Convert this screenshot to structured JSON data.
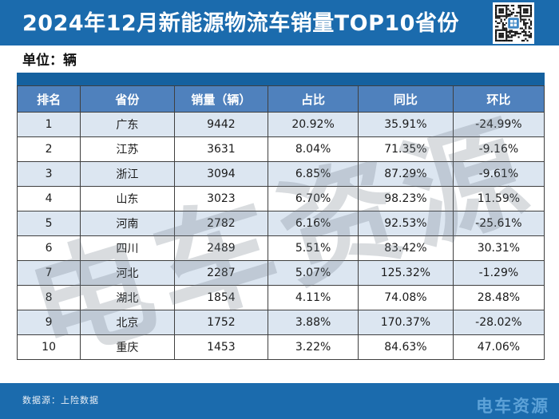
{
  "header": {
    "title": "2024年12月新能源物流车销量TOP10省份"
  },
  "icons": {
    "qr_code": "qr-code-icon"
  },
  "unit_label": "单位：辆",
  "table": {
    "columns": [
      "排名",
      "省份",
      "销量（辆）",
      "占比",
      "同比",
      "环比"
    ],
    "rows": [
      [
        "1",
        "广东",
        "9442",
        "20.92%",
        "35.91%",
        "-24.99%"
      ],
      [
        "2",
        "江苏",
        "3631",
        "8.04%",
        "71.35%",
        "-9.16%"
      ],
      [
        "3",
        "浙江",
        "3094",
        "6.85%",
        "87.29%",
        "-9.61%"
      ],
      [
        "4",
        "山东",
        "3023",
        "6.70%",
        "98.23%",
        "11.59%"
      ],
      [
        "5",
        "河南",
        "2782",
        "6.16%",
        "92.53%",
        "-25.61%"
      ],
      [
        "6",
        "四川",
        "2489",
        "5.51%",
        "83.42%",
        "30.31%"
      ],
      [
        "7",
        "河北",
        "2287",
        "5.07%",
        "125.32%",
        "-1.29%"
      ],
      [
        "8",
        "湖北",
        "1854",
        "4.11%",
        "74.08%",
        "28.48%"
      ],
      [
        "9",
        "北京",
        "1752",
        "3.88%",
        "170.37%",
        "-28.02%"
      ],
      [
        "10",
        "重庆",
        "1453",
        "3.22%",
        "84.63%",
        "47.06%"
      ]
    ]
  },
  "watermark_text": "电车资源",
  "footer": {
    "source": "数据源：上险数据",
    "brand": "电车资源"
  },
  "colors": {
    "banner_blue": "#1b6bad",
    "strip_blue": "#15619f",
    "header_row_blue": "#4f81bd",
    "row_alt_blue": "#dce6f1",
    "row_white": "#ffffff",
    "border_gray": "#3f3f3f",
    "brand_logo_blue": "#5da2d8",
    "watermark_gray": "#c9ced4"
  },
  "chart_data": {
    "type": "table",
    "title": "2024年12月新能源物流车销量TOP10省份",
    "unit": "辆",
    "columns": [
      "排名",
      "省份",
      "销量（辆）",
      "占比",
      "同比",
      "环比"
    ],
    "rows": [
      [
        "1",
        "广东",
        "9442",
        "20.92%",
        "35.91%",
        "-24.99%"
      ],
      [
        "2",
        "江苏",
        "3631",
        "8.04%",
        "71.35%",
        "-9.16%"
      ],
      [
        "3",
        "浙江",
        "3094",
        "6.85%",
        "87.29%",
        "-9.61%"
      ],
      [
        "4",
        "山东",
        "3023",
        "6.70%",
        "98.23%",
        "11.59%"
      ],
      [
        "5",
        "河南",
        "2782",
        "6.16%",
        "92.53%",
        "-25.61%"
      ],
      [
        "6",
        "四川",
        "2489",
        "5.51%",
        "83.42%",
        "30.31%"
      ],
      [
        "7",
        "河北",
        "2287",
        "5.07%",
        "125.32%",
        "-1.29%"
      ],
      [
        "8",
        "湖北",
        "1854",
        "4.11%",
        "74.08%",
        "28.48%"
      ],
      [
        "9",
        "北京",
        "1752",
        "3.88%",
        "170.37%",
        "-28.02%"
      ],
      [
        "10",
        "重庆",
        "1453",
        "3.22%",
        "84.63%",
        "47.06%"
      ]
    ],
    "source": "数据源：上险数据"
  }
}
